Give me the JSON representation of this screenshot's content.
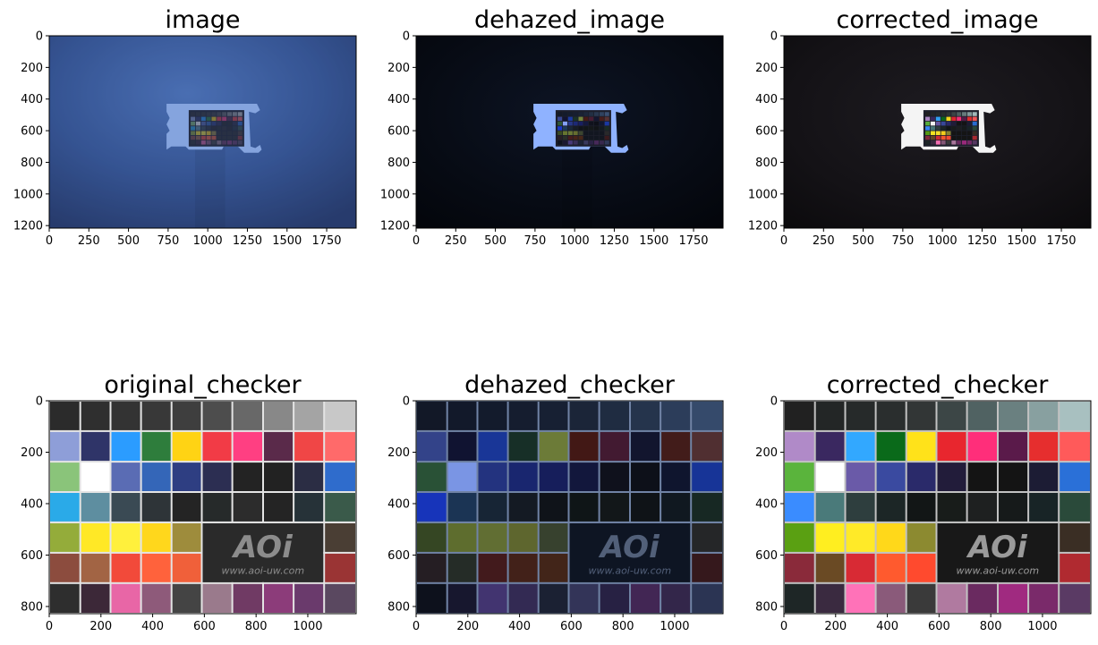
{
  "figure": {
    "panels": [
      {
        "id": "image",
        "title": "image",
        "kind": "scene",
        "variant": "hazy",
        "xticks": [
          "0",
          "250",
          "500",
          "750",
          "1000",
          "1250",
          "1500",
          "1750"
        ],
        "xtick_values": [
          0,
          250,
          500,
          750,
          1000,
          1250,
          1500,
          1750
        ],
        "yticks": [
          "0",
          "200",
          "400",
          "600",
          "800",
          "1000",
          "1200"
        ],
        "ytick_values": [
          0,
          200,
          400,
          600,
          800,
          1000,
          1200
        ],
        "xlim": [
          0,
          1936
        ],
        "ylim": [
          1216,
          0
        ],
        "colors": {
          "bg": "#34528f",
          "bg_center": "#4e74b8",
          "bg_edge": "#22335f",
          "frame": "#9ab9f0"
        }
      },
      {
        "id": "dehazed_image",
        "title": "dehazed_image",
        "kind": "scene",
        "variant": "dehazed",
        "xticks": [
          "0",
          "250",
          "500",
          "750",
          "1000",
          "1250",
          "1500",
          "1750"
        ],
        "xtick_values": [
          0,
          250,
          500,
          750,
          1000,
          1250,
          1500,
          1750
        ],
        "yticks": [
          "0",
          "200",
          "400",
          "600",
          "800",
          "1000",
          "1200"
        ],
        "ytick_values": [
          0,
          200,
          400,
          600,
          800,
          1000,
          1200
        ],
        "xlim": [
          0,
          1936
        ],
        "ylim": [
          1216,
          0
        ],
        "colors": {
          "bg": "#070b14",
          "bg_center": "#0d1424",
          "bg_edge": "#03050a",
          "frame": "#8fb2ff"
        }
      },
      {
        "id": "corrected_image",
        "title": "corrected_image",
        "kind": "scene",
        "variant": "corrected",
        "xticks": [
          "0",
          "250",
          "500",
          "750",
          "1000",
          "1250",
          "1500",
          "1750"
        ],
        "xtick_values": [
          0,
          250,
          500,
          750,
          1000,
          1250,
          1500,
          1750
        ],
        "yticks": [
          "0",
          "200",
          "400",
          "600",
          "800",
          "1000",
          "1200"
        ],
        "ytick_values": [
          0,
          200,
          400,
          600,
          800,
          1000,
          1200
        ],
        "xlim": [
          0,
          1936
        ],
        "ylim": [
          1216,
          0
        ],
        "colors": {
          "bg": "#141216",
          "bg_center": "#1d1b20",
          "bg_edge": "#0b0a0c",
          "frame": "#f4f4f4"
        }
      },
      {
        "id": "original_checker",
        "title": "original_checker",
        "kind": "checker",
        "variant": "original",
        "xticks": [
          "0",
          "200",
          "400",
          "600",
          "800",
          "1000"
        ],
        "xtick_values": [
          0,
          200,
          400,
          600,
          800,
          1000
        ],
        "yticks": [
          "0",
          "200",
          "400",
          "600",
          "800"
        ],
        "ytick_values": [
          0,
          200,
          400,
          600,
          800
        ],
        "xlim": [
          0,
          1187
        ],
        "ylim": [
          828,
          0
        ],
        "colors": {
          "grid": "#e4e4e4",
          "logo_bg": "#2a2a2a",
          "logo_fg": "#8c8c8c"
        },
        "logo_text": "www.aoi-uw.com",
        "logo_mark": "AOi"
      },
      {
        "id": "dehazed_checker",
        "title": "dehazed_checker",
        "kind": "checker",
        "variant": "dehazed",
        "xticks": [
          "0",
          "200",
          "400",
          "600",
          "800",
          "1000"
        ],
        "xtick_values": [
          0,
          200,
          400,
          600,
          800,
          1000
        ],
        "yticks": [
          "0",
          "200",
          "400",
          "600",
          "800"
        ],
        "ytick_values": [
          0,
          200,
          400,
          600,
          800
        ],
        "xlim": [
          0,
          1187
        ],
        "ylim": [
          828,
          0
        ],
        "colors": {
          "grid": "#7f93b8",
          "logo_bg": "#0f1624",
          "logo_fg": "#5d6b86"
        },
        "logo_text": "www.aoi-uw.com",
        "logo_mark": "AOi"
      },
      {
        "id": "corrected_checker",
        "title": "corrected_checker",
        "kind": "checker",
        "variant": "corrected",
        "xticks": [
          "0",
          "200",
          "400",
          "600",
          "800",
          "1000"
        ],
        "xtick_values": [
          0,
          200,
          400,
          600,
          800,
          1000
        ],
        "yticks": [
          "0",
          "200",
          "400",
          "600",
          "800"
        ],
        "ytick_values": [
          0,
          200,
          400,
          600,
          800
        ],
        "xlim": [
          0,
          1187
        ],
        "ylim": [
          828,
          0
        ],
        "colors": {
          "grid": "#c2c2c2",
          "logo_bg": "#181818",
          "logo_fg": "#9a9a9a"
        },
        "logo_text": "www.aoi-uw.com",
        "logo_mark": "AOi"
      }
    ],
    "checker_colors": {
      "original": [
        [
          "#2b2b2b",
          "#2f2f2f",
          "#333333",
          "#383838",
          "#3e3e3e",
          "#4d4d4d",
          "#686868",
          "#888888",
          "#a4a4a4",
          "#c8c8c8"
        ],
        [
          "#8e9ed8",
          "#2f3468",
          "#2b9cff",
          "#2e7d3c",
          "#ffd314",
          "#f23b46",
          "#ff3f82",
          "#5a2a4a",
          "#f04646",
          "#ff6a6a"
        ],
        [
          "#8ac47a",
          "#ffffff",
          "#5a6cb4",
          "#3466b8",
          "#2e3e82",
          "#2c2e52",
          "#232323",
          "#222222",
          "#2b2d44",
          "#2f6ccc"
        ],
        [
          "#2aaae8",
          "#5e8ea0",
          "#3a4a54",
          "#2e3438",
          "#242424",
          "#262a2a",
          "#2c2c2c",
          "#242424",
          "#263238",
          "#3a5a4a"
        ],
        [
          "#94ac3a",
          "#ffe826",
          "#fff03c",
          "#ffd71c",
          "#9e8c3c",
          "#2a2a2a",
          "#2a2a2a",
          "#2a2a2a",
          "#2a2a2a",
          "#4a3e34"
        ],
        [
          "#8c4c3e",
          "#a26444",
          "#f24a3a",
          "#ff623c",
          "#f0603a",
          "#2a2a2a",
          "#2a2a2a",
          "#2a2a2a",
          "#2a2a2a",
          "#9a3434"
        ],
        [
          "#2e2e2e",
          "#3c2838",
          "#e866a6",
          "#8e5a7a",
          "#444444",
          "#9a7a8c",
          "#703a64",
          "#8c3c7a",
          "#6a3a6c",
          "#5a4860"
        ]
      ],
      "dehazed": [
        [
          "#141a28",
          "#141b2c",
          "#151d2e",
          "#171f32",
          "#1a2336",
          "#1e283c",
          "#233046",
          "#2a3a52",
          "#324462",
          "#3c5276"
        ],
        [
          "#3a4a98",
          "#121434",
          "#1c3ca8",
          "#1a3428",
          "#7a8a3c",
          "#4a1a14",
          "#4a1c34",
          "#141630",
          "#4a1e1a",
          "#5a3434"
        ],
        [
          "#2e5a3a",
          "#8aa8ff",
          "#27388c",
          "#1c2a7a",
          "#182064",
          "#141840",
          "#10121c",
          "#0e1018",
          "#101630",
          "#1a3aa8"
        ],
        [
          "#1a3ad0",
          "#1e3a5c",
          "#1a2838",
          "#161c24",
          "#101418",
          "#111616",
          "#141818",
          "#111416",
          "#121a20",
          "#1a2c24"
        ],
        [
          "#3c4e24",
          "#6a7a30",
          "#6e7c36",
          "#6a7230",
          "#3e4830",
          "#121620",
          "#121620",
          "#121620",
          "#121620",
          "#2a2a2a"
        ],
        [
          "#2a2024",
          "#2a3028",
          "#4a1c1c",
          "#4a2418",
          "#4a2818",
          "#121620",
          "#121620",
          "#121620",
          "#121620",
          "#3c1a1c"
        ],
        [
          "#0e121c",
          "#1a1830",
          "#4a3a7c",
          "#3a2e5a",
          "#1e2436",
          "#3a3a60",
          "#2c2448",
          "#4a2a5c",
          "#3a2a50",
          "#303a5a"
        ]
      ],
      "corrected": [
        [
          "#212121",
          "#232626",
          "#262a2a",
          "#2a2e2e",
          "#323636",
          "#3c4646",
          "#506262",
          "#6a8080",
          "#88a0a0",
          "#a8c0c0"
        ],
        [
          "#b08ac8",
          "#3a2860",
          "#32a8ff",
          "#0a6a1a",
          "#ffe21a",
          "#e8262e",
          "#ff2e7a",
          "#5a1a4a",
          "#e62e2e",
          "#ff5a5a"
        ],
        [
          "#5ab43c",
          "#ffffff",
          "#6a5aa8",
          "#3a4aa0",
          "#2a2a6a",
          "#221c3a",
          "#141414",
          "#141414",
          "#1c1c34",
          "#2a70d8"
        ],
        [
          "#3a8cff",
          "#4a7a7a",
          "#2e3e3e",
          "#1c2626",
          "#121616",
          "#181c1a",
          "#1e2020",
          "#161a1a",
          "#182426",
          "#2a4a3a"
        ],
        [
          "#5aa012",
          "#ffee20",
          "#ffea28",
          "#ffd81a",
          "#8c8a30",
          "#141414",
          "#141414",
          "#141414",
          "#141414",
          "#3a2e24"
        ],
        [
          "#8a2a3a",
          "#6a4a24",
          "#d82a34",
          "#ff5a2e",
          "#ff4a2e",
          "#141414",
          "#141414",
          "#141414",
          "#141414",
          "#b02a30"
        ],
        [
          "#1e2626",
          "#3a2a40",
          "#ff72b8",
          "#8a5a7a",
          "#3a3a3a",
          "#b07aa0",
          "#6a2a60",
          "#a02a80",
          "#7a2a6a",
          "#5a3a64"
        ]
      ]
    }
  }
}
